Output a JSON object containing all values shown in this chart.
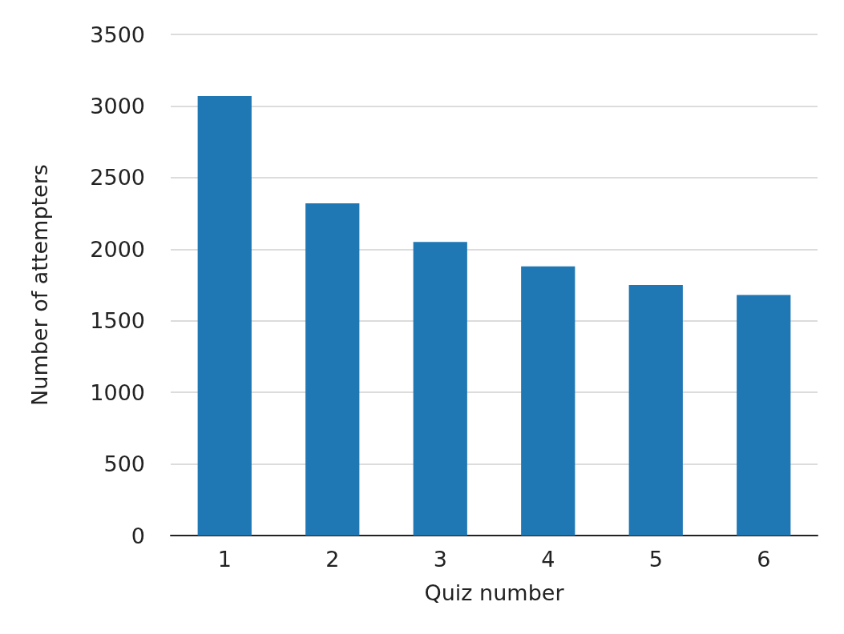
{
  "chart_data": {
    "type": "bar",
    "xlabel": "Quiz number",
    "ylabel": "Number of attempters",
    "categories": [
      "1",
      "2",
      "3",
      "4",
      "5",
      "6"
    ],
    "values": [
      3070,
      2320,
      2050,
      1880,
      1750,
      1680
    ],
    "color": "#1f77b4",
    "ylim": [
      0,
      3500
    ],
    "yticks": [
      0,
      500,
      1000,
      1500,
      2000,
      2500,
      3000,
      3500
    ],
    "grid": "y"
  }
}
